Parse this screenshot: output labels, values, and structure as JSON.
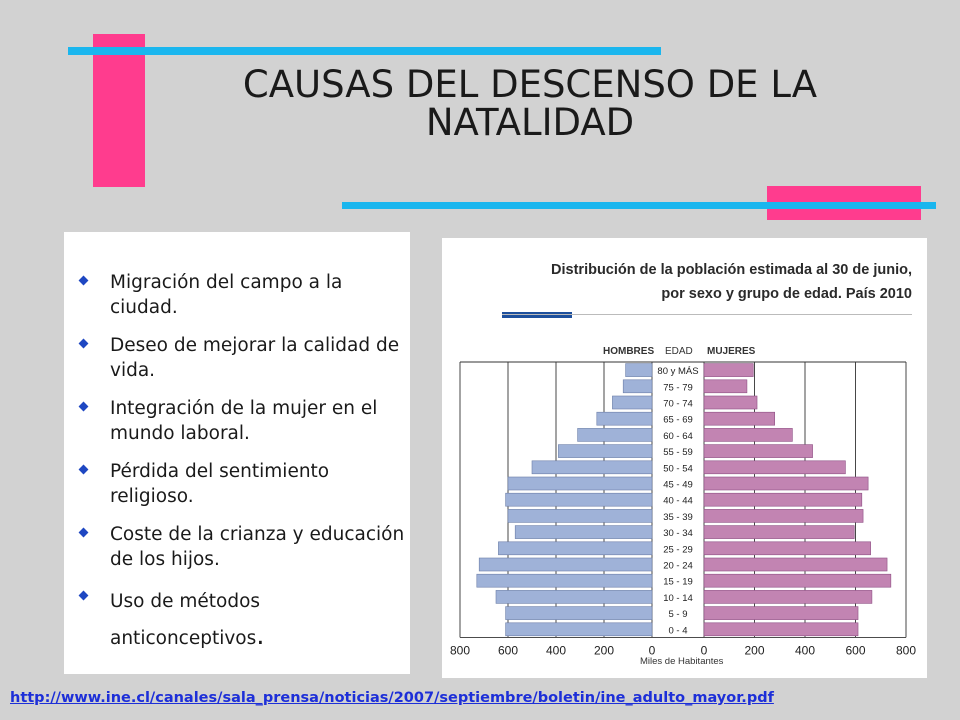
{
  "slide": {
    "title_line1": "CAUSAS DEL DESCENSO DE LA",
    "title_line2": "NATALIDAD",
    "bullets": [
      "Migración del campo a la ciudad.",
      "Deseo de mejorar la calidad de vida.",
      "Integración de la mujer en el mundo laboral.",
      "Pérdida del sentimiento religioso.",
      "Coste de la crianza y educación de los hijos."
    ],
    "last_bullet_text": "Uso de métodos anticonceptivos",
    "last_bullet_period": ".",
    "source_url": "http://www.ine.cl/canales/sala_prensa/noticias/2007/septiembre/boletin/ine_adulto_mayor.pdf",
    "colors": {
      "pink": "#ff3c8e",
      "blue": "#1ab6ee",
      "background": "#d2d2d2",
      "bullet": "#1e47c2",
      "link": "#1d2fd8"
    }
  },
  "chart_data": {
    "type": "bar",
    "subtype": "population-pyramid",
    "title": "Distribución de la población estimada al 30 de junio, por sexo y grupo de edad. País 2010",
    "left_label": "HOMBRES",
    "center_label": "EDAD",
    "right_label": "MUJERES",
    "xlabel": "Miles de Habitantes",
    "xlim": [
      0,
      800
    ],
    "xticks": [
      "800",
      "600",
      "400",
      "200",
      "0",
      "0",
      "200",
      "400",
      "600",
      "800"
    ],
    "categories": [
      "80 y MÁS",
      "75 - 79",
      "70 - 74",
      "65 - 69",
      "60 - 64",
      "55 - 59",
      "50 - 54",
      "45 - 49",
      "40 - 44",
      "35 - 39",
      "30 - 34",
      "25 - 29",
      "20 - 24",
      "15 - 19",
      "10 - 14",
      "5 - 9",
      "0 - 4"
    ],
    "series": [
      {
        "name": "HOMBRES",
        "color": "#9fb2d8",
        "values": [
          110,
          120,
          165,
          230,
          310,
          390,
          500,
          600,
          610,
          600,
          570,
          640,
          720,
          730,
          650,
          610,
          610
        ]
      },
      {
        "name": "MUJERES",
        "color": "#c284b2",
        "values": [
          195,
          170,
          210,
          280,
          350,
          430,
          560,
          650,
          625,
          630,
          595,
          660,
          725,
          740,
          665,
          610,
          610
        ]
      }
    ]
  }
}
